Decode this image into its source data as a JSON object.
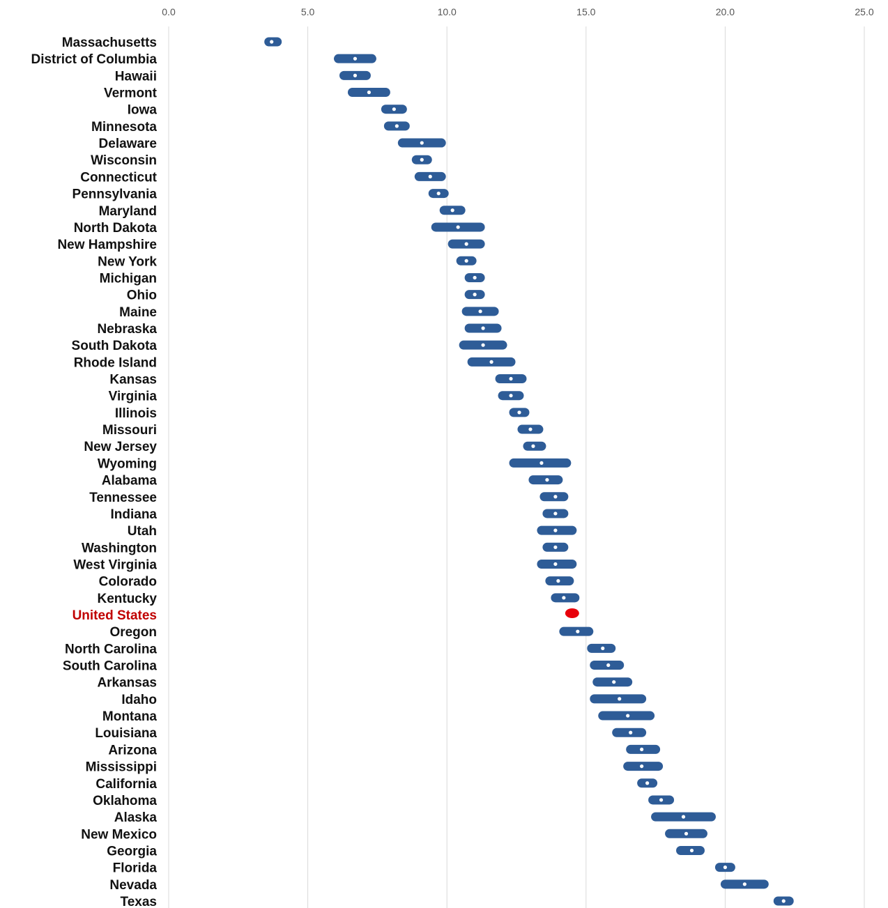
{
  "chart_data": {
    "type": "range-dot",
    "title": "",
    "xlabel": "",
    "ylabel": "",
    "xlim": [
      0,
      25
    ],
    "xticks": [
      "0.0",
      "5.0",
      "10.0",
      "15.0",
      "20.0",
      "25.0"
    ],
    "grid": true,
    "colors": {
      "range": "#2e5c97",
      "point": "#ffffff",
      "highlight": "#e8000b",
      "highlight_label": "#c00000"
    },
    "highlight": "United States",
    "rows": [
      {
        "label": "Massachusetts",
        "low": 3.6,
        "value": 3.7,
        "high": 3.9
      },
      {
        "label": "District of Columbia",
        "low": 6.1,
        "value": 6.7,
        "high": 7.3
      },
      {
        "label": "Hawaii",
        "low": 6.3,
        "value": 6.7,
        "high": 7.1
      },
      {
        "label": "Vermont",
        "low": 6.6,
        "value": 7.2,
        "high": 7.8
      },
      {
        "label": "Iowa",
        "low": 7.8,
        "value": 8.1,
        "high": 8.4
      },
      {
        "label": "Minnesota",
        "low": 7.9,
        "value": 8.2,
        "high": 8.5
      },
      {
        "label": "Delaware",
        "low": 8.4,
        "value": 9.1,
        "high": 9.8
      },
      {
        "label": "Wisconsin",
        "low": 8.9,
        "value": 9.1,
        "high": 9.3
      },
      {
        "label": "Connecticut",
        "low": 9.0,
        "value": 9.4,
        "high": 9.8
      },
      {
        "label": "Pennsylvania",
        "low": 9.5,
        "value": 9.7,
        "high": 9.9
      },
      {
        "label": "Maryland",
        "low": 9.9,
        "value": 10.2,
        "high": 10.5
      },
      {
        "label": "North Dakota",
        "low": 9.6,
        "value": 10.4,
        "high": 11.2
      },
      {
        "label": "New Hampshire",
        "low": 10.2,
        "value": 10.7,
        "high": 11.2
      },
      {
        "label": "New York",
        "low": 10.5,
        "value": 10.7,
        "high": 10.9
      },
      {
        "label": "Michigan",
        "low": 10.8,
        "value": 11.0,
        "high": 11.2
      },
      {
        "label": "Ohio",
        "low": 10.8,
        "value": 11.0,
        "high": 11.2
      },
      {
        "label": "Maine",
        "low": 10.7,
        "value": 11.2,
        "high": 11.7
      },
      {
        "label": "Nebraska",
        "low": 10.8,
        "value": 11.3,
        "high": 11.8
      },
      {
        "label": "South Dakota",
        "low": 10.6,
        "value": 11.3,
        "high": 12.0
      },
      {
        "label": "Rhode Island",
        "low": 10.9,
        "value": 11.6,
        "high": 12.3
      },
      {
        "label": "Kansas",
        "low": 11.9,
        "value": 12.3,
        "high": 12.7
      },
      {
        "label": "Virginia",
        "low": 12.0,
        "value": 12.3,
        "high": 12.6
      },
      {
        "label": "Illinois",
        "low": 12.4,
        "value": 12.6,
        "high": 12.8
      },
      {
        "label": "Missouri",
        "low": 12.7,
        "value": 13.0,
        "high": 13.3
      },
      {
        "label": "New Jersey",
        "low": 12.9,
        "value": 13.1,
        "high": 13.4
      },
      {
        "label": "Wyoming",
        "low": 12.4,
        "value": 13.4,
        "high": 14.3
      },
      {
        "label": "Alabama",
        "low": 13.1,
        "value": 13.6,
        "high": 14.0
      },
      {
        "label": "Tennessee",
        "low": 13.5,
        "value": 13.9,
        "high": 14.2
      },
      {
        "label": "Indiana",
        "low": 13.6,
        "value": 13.9,
        "high": 14.2
      },
      {
        "label": "Utah",
        "low": 13.4,
        "value": 13.9,
        "high": 14.5
      },
      {
        "label": "Washington",
        "low": 13.6,
        "value": 13.9,
        "high": 14.2
      },
      {
        "label": "West Virginia",
        "low": 13.4,
        "value": 13.9,
        "high": 14.5
      },
      {
        "label": "Colorado",
        "low": 13.7,
        "value": 14.0,
        "high": 14.4
      },
      {
        "label": "Kentucky",
        "low": 13.9,
        "value": 14.2,
        "high": 14.6
      },
      {
        "label": "United States",
        "low": 14.4,
        "value": 14.5,
        "high": 14.6
      },
      {
        "label": "Oregon",
        "low": 14.2,
        "value": 14.7,
        "high": 15.1
      },
      {
        "label": "North Carolina",
        "low": 15.2,
        "value": 15.6,
        "high": 15.9
      },
      {
        "label": "South Carolina",
        "low": 15.3,
        "value": 15.8,
        "high": 16.2
      },
      {
        "label": "Arkansas",
        "low": 15.4,
        "value": 16.0,
        "high": 16.5
      },
      {
        "label": "Idaho",
        "low": 15.3,
        "value": 16.2,
        "high": 17.0
      },
      {
        "label": "Montana",
        "low": 15.6,
        "value": 16.5,
        "high": 17.3
      },
      {
        "label": "Louisiana",
        "low": 16.1,
        "value": 16.6,
        "high": 17.0
      },
      {
        "label": "Arizona",
        "low": 16.6,
        "value": 17.0,
        "high": 17.5
      },
      {
        "label": "Mississippi",
        "low": 16.5,
        "value": 17.0,
        "high": 17.6
      },
      {
        "label": "California",
        "low": 17.0,
        "value": 17.2,
        "high": 17.4
      },
      {
        "label": "Oklahoma",
        "low": 17.4,
        "value": 17.7,
        "high": 18.0
      },
      {
        "label": "Alaska",
        "low": 17.5,
        "value": 18.5,
        "high": 19.5
      },
      {
        "label": "New Mexico",
        "low": 18.0,
        "value": 18.6,
        "high": 19.2
      },
      {
        "label": "Georgia",
        "low": 18.4,
        "value": 18.8,
        "high": 19.1
      },
      {
        "label": "Florida",
        "low": 19.8,
        "value": 20.0,
        "high": 20.2
      },
      {
        "label": "Nevada",
        "low": 20.0,
        "value": 20.7,
        "high": 21.4
      },
      {
        "label": "Texas",
        "low": 21.9,
        "value": 22.1,
        "high": 22.3
      }
    ]
  }
}
